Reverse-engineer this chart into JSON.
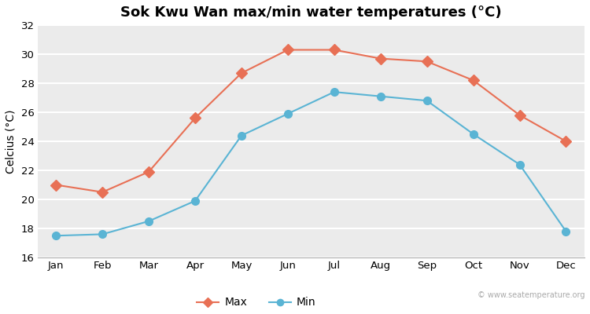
{
  "title": "Sok Kwu Wan max/min water temperatures (°C)",
  "ylabel": "Celcius (°C)",
  "months": [
    "Jan",
    "Feb",
    "Mar",
    "Apr",
    "May",
    "Jun",
    "Jul",
    "Aug",
    "Sep",
    "Oct",
    "Nov",
    "Dec"
  ],
  "max_temps": [
    21.0,
    20.5,
    21.9,
    25.6,
    28.7,
    30.3,
    30.3,
    29.7,
    29.5,
    28.2,
    25.8,
    24.0
  ],
  "min_temps": [
    17.5,
    17.6,
    18.5,
    19.9,
    24.4,
    25.9,
    27.4,
    27.1,
    26.8,
    24.5,
    22.4,
    17.8
  ],
  "max_color": "#e87055",
  "min_color": "#5ab4d4",
  "ylim": [
    16,
    32
  ],
  "yticks": [
    16,
    18,
    20,
    22,
    24,
    26,
    28,
    30,
    32
  ],
  "fig_bg_color": "#ffffff",
  "plot_bg_color": "#ebebeb",
  "grid_color": "#ffffff",
  "title_fontsize": 13,
  "axis_label_fontsize": 10,
  "tick_fontsize": 9.5,
  "watermark": "© www.seatemperature.org",
  "legend_labels": [
    "Max",
    "Min"
  ]
}
